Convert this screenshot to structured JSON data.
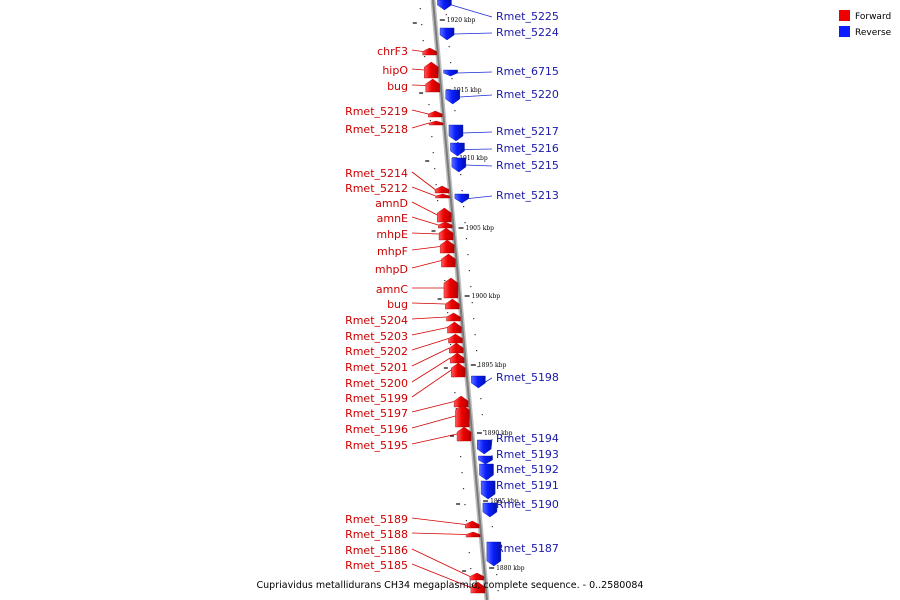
{
  "legend": {
    "forward_label": "Forward",
    "reverse_label": "Reverse",
    "forward_color": "#ee0000",
    "reverse_color": "#0a1eff"
  },
  "caption": "Cupriavidus metallidurans CH34 megaplasmid, complete sequence. - 0..2580084",
  "ticks": [
    {
      "label": "1920 kbp",
      "kbp": 1920
    },
    {
      "label": "1915 kbp",
      "kbp": 1915
    },
    {
      "label": "1910 kbp",
      "kbp": 1910
    },
    {
      "label": "1905 kbp",
      "kbp": 1905
    },
    {
      "label": "1900 kbp",
      "kbp": 1900
    },
    {
      "label": "1895 kbp",
      "kbp": 1895
    },
    {
      "label": "1890 kbp",
      "kbp": 1890
    },
    {
      "label": "1885 kbp",
      "kbp": 1885
    },
    {
      "label": "1880 kbp",
      "kbp": 1880
    }
  ],
  "forward_genes": [
    {
      "name": "chrF3"
    },
    {
      "name": "hipO"
    },
    {
      "name": "bug"
    },
    {
      "name": "Rmet_5219"
    },
    {
      "name": "Rmet_5218"
    },
    {
      "name": "Rmet_5214"
    },
    {
      "name": "Rmet_5212"
    },
    {
      "name": "amnD"
    },
    {
      "name": "amnE"
    },
    {
      "name": "mhpE"
    },
    {
      "name": "mhpF"
    },
    {
      "name": "mhpD"
    },
    {
      "name": "amnC"
    },
    {
      "name": "bug"
    },
    {
      "name": "Rmet_5204"
    },
    {
      "name": "Rmet_5203"
    },
    {
      "name": "Rmet_5202"
    },
    {
      "name": "Rmet_5201"
    },
    {
      "name": "Rmet_5200"
    },
    {
      "name": "Rmet_5199"
    },
    {
      "name": "Rmet_5197"
    },
    {
      "name": "Rmet_5196"
    },
    {
      "name": "Rmet_5195"
    },
    {
      "name": "Rmet_5189"
    },
    {
      "name": "Rmet_5188"
    },
    {
      "name": "Rmet_5186"
    },
    {
      "name": "Rmet_5185"
    }
  ],
  "reverse_genes": [
    {
      "name": "Rmet_5225"
    },
    {
      "name": "Rmet_5224"
    },
    {
      "name": "Rmet_6715"
    },
    {
      "name": "Rmet_5220"
    },
    {
      "name": "Rmet_5217"
    },
    {
      "name": "Rmet_5216"
    },
    {
      "name": "Rmet_5215"
    },
    {
      "name": "Rmet_5213"
    },
    {
      "name": "Rmet_5198"
    },
    {
      "name": "Rmet_5194"
    },
    {
      "name": "Rmet_5193"
    },
    {
      "name": "Rmet_5192"
    },
    {
      "name": "Rmet_5191"
    },
    {
      "name": "Rmet_5190"
    },
    {
      "name": "Rmet_5187"
    }
  ]
}
